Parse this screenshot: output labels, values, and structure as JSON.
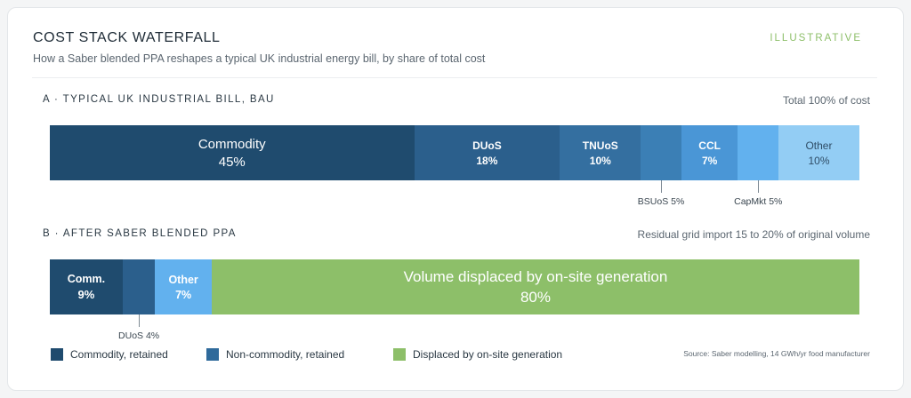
{
  "header": {
    "title": "COST STACK WATERFALL",
    "badge": "ILLUSTRATIVE",
    "subtitle": "How a Saber blended PPA reshapes a typical UK industrial energy bill, by share of total cost"
  },
  "chart_data": [
    {
      "type": "bar",
      "orientation": "horizontal-stacked",
      "title": "A · TYPICAL UK INDUSTRIAL BILL, BAU",
      "note": "Total 100% of cost",
      "segments": [
        {
          "name": "Commodity",
          "value": 45,
          "label": "45%",
          "color": "#1f4b6e",
          "text_color": "#ffffff"
        },
        {
          "name": "DUoS",
          "value": 18,
          "label": "18%",
          "color": "#2b5f8c",
          "text_color": "#ffffff"
        },
        {
          "name": "TNUoS",
          "value": 10,
          "label": "10%",
          "color": "#346fa0",
          "text_color": "#ffffff"
        },
        {
          "name": "",
          "value": 5,
          "label": "",
          "color": "#3b7fb5",
          "text_color": "#ffffff"
        },
        {
          "name": "CCL",
          "value": 7,
          "label": "7%",
          "color": "#4a96d6",
          "text_color": "#ffffff"
        },
        {
          "name": "",
          "value": 5,
          "label": "",
          "color": "#62b1ee",
          "text_color": "#ffffff"
        },
        {
          "name": "Other",
          "value": 10,
          "label": "10%",
          "color": "#93cdf4",
          "text_color": "#2f4d66"
        }
      ],
      "callouts": [
        {
          "text": "BSUoS 5%",
          "segment_index": 3
        },
        {
          "text": "CapMkt 5%",
          "segment_index": 5
        }
      ]
    },
    {
      "type": "bar",
      "orientation": "horizontal-stacked",
      "title": "B · AFTER SABER BLENDED PPA",
      "note": "Residual grid import 15 to 20% of original volume",
      "segments": [
        {
          "name": "Comm.",
          "value": 9,
          "label": "9%",
          "color": "#1f4b6e",
          "text_color": "#ffffff"
        },
        {
          "name": "",
          "value": 4,
          "label": "",
          "color": "#2b5f8c",
          "text_color": "#ffffff"
        },
        {
          "name": "Other",
          "value": 7,
          "label": "7%",
          "color": "#62b1ee",
          "text_color": "#ffffff"
        },
        {
          "name": "Volume displaced by on-site generation",
          "value": 80,
          "label": "80%",
          "color": "#8dbf69",
          "text_color": "#ffffff"
        }
      ],
      "callouts": [
        {
          "text": "DUoS 4%",
          "segment_index": 1
        }
      ]
    }
  ],
  "legend": [
    {
      "label": "Commodity, retained",
      "color": "#1f4b6e"
    },
    {
      "label": "Non-commodity, retained",
      "color": "#2f6a9b"
    },
    {
      "label": "Displaced by on-site generation",
      "color": "#8dbf69"
    }
  ],
  "source": "Source: Saber modelling, 14 GWh/yr food manufacturer"
}
